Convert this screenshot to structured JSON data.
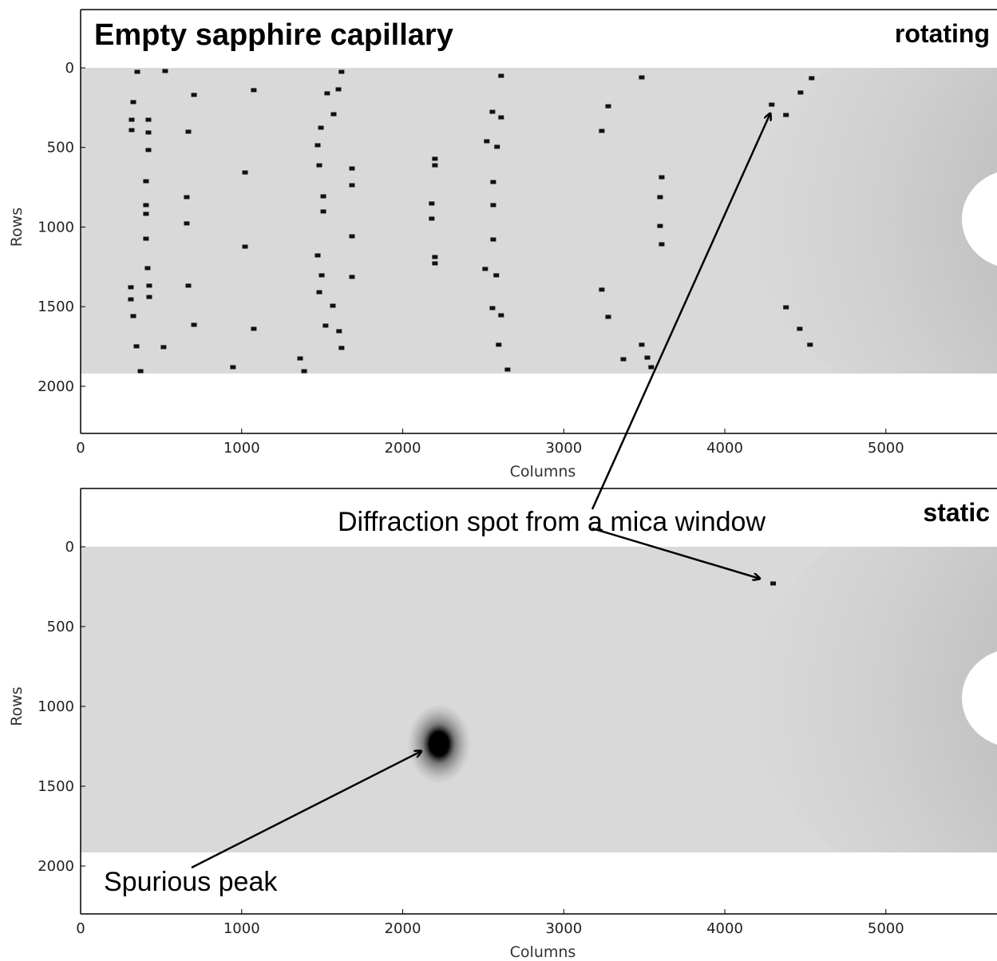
{
  "chart_data": [
    {
      "type": "image",
      "title": "Empty sapphire capillary",
      "subtitle": "rotating",
      "xlabel": "Columns",
      "ylabel": "Rows",
      "xlim": [
        0,
        5690
      ],
      "ylim": [
        2296,
        -366
      ],
      "xticks": [
        0,
        1000,
        2000,
        3000,
        4000,
        5000
      ],
      "yticks": [
        0,
        500,
        1000,
        1500,
        2000
      ],
      "spots": {
        "x": [
          352,
          525,
          327,
          317,
          317,
          421,
          421,
          421,
          406,
          406,
          406,
          406,
          416,
          312,
          312,
          426,
          426,
          327,
          347,
          372,
          515,
          704,
          669,
          659,
          659,
          669,
          704,
          1075,
          1021,
          1021,
          1075,
          946,
          1363,
          1388,
          1620,
          1601,
          1531,
          1571,
          1492,
          1472,
          1482,
          1685,
          1685,
          1507,
          1507,
          1685,
          1472,
          1497,
          1685,
          1482,
          1566,
          1521,
          1605,
          1620,
          2200,
          2200,
          2180,
          2180,
          2200,
          2200,
          2611,
          2557,
          2611,
          2522,
          2586,
          2562,
          2562,
          2562,
          2512,
          2581,
          2557,
          2611,
          2596,
          2651,
          3276,
          3236,
          3236,
          3276,
          3370,
          3484,
          3608,
          3598,
          3598,
          3608,
          3484,
          3519,
          3543,
          4291,
          4380,
          4470,
          4539,
          4380,
          4465,
          4529
        ],
        "y": [
          25,
          20,
          215,
          326,
          391,
          326,
          406,
          516,
          712,
          862,
          917,
          1073,
          1258,
          1378,
          1454,
          1368,
          1439,
          1559,
          1749,
          1905,
          1754,
          170,
          401,
          812,
          977,
          1368,
          1614,
          140,
          657,
          1123,
          1639,
          1880,
          1825,
          1905,
          25,
          135,
          160,
          291,
          376,
          486,
          612,
          632,
          737,
          807,
          902,
          1058,
          1178,
          1303,
          1313,
          1409,
          1494,
          1619,
          1654,
          1759,
          571,
          612,
          852,
          947,
          1188,
          1228,
          50,
          276,
          311,
          461,
          496,
          717,
          862,
          1078,
          1263,
          1303,
          1509,
          1554,
          1739,
          1895,
          241,
          396,
          1393,
          1564,
          1830,
          60,
          687,
          812,
          993,
          1108,
          1739,
          1820,
          1880,
          231,
          296,
          155,
          65,
          1504,
          1639,
          1739
        ]
      }
    },
    {
      "type": "image",
      "subtitle": "static",
      "xlabel": "Columns",
      "ylabel": "Rows",
      "xlim": [
        0,
        5690
      ],
      "ylim": [
        2300,
        -365
      ],
      "xticks": [
        0,
        1000,
        2000,
        3000,
        4000,
        5000
      ],
      "yticks": [
        0,
        500,
        1000,
        1500,
        2000
      ],
      "spots": {
        "x": [
          4300
        ],
        "y": [
          230
        ]
      },
      "annotations": [
        "Diffraction spot from a mica window",
        "Spurious peak"
      ]
    }
  ]
}
